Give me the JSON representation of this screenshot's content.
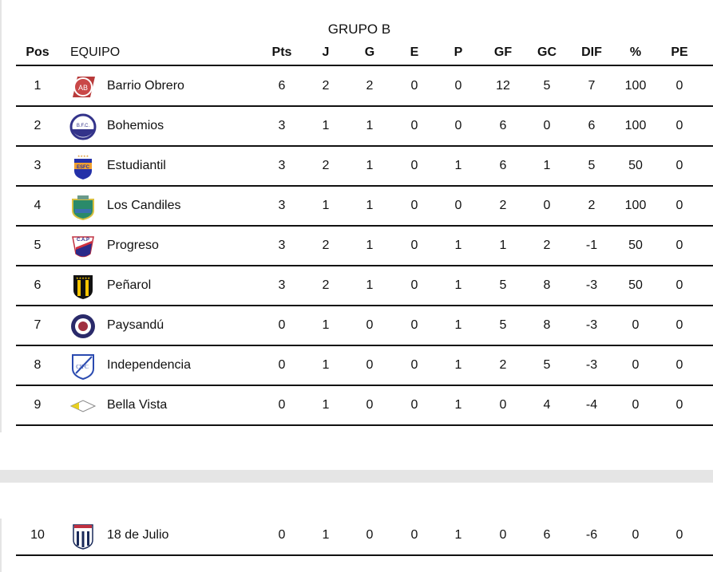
{
  "title": "GRUPO B",
  "headers": {
    "pos": "Pos",
    "team": "EQUIPO",
    "pts": "Pts",
    "j": "J",
    "g": "G",
    "e": "E",
    "p": "P",
    "gf": "GF",
    "gc": "GC",
    "dif": "DIF",
    "pct": "%",
    "pe": "PE"
  },
  "rows": [
    {
      "pos": "1",
      "team": "Barrio Obrero",
      "logo": "barrio-obrero-crest",
      "pts": "6",
      "j": "2",
      "g": "2",
      "e": "0",
      "p": "0",
      "gf": "12",
      "gc": "5",
      "dif": "7",
      "pct": "100",
      "pe": "0"
    },
    {
      "pos": "2",
      "team": "Bohemios",
      "logo": "bohemios-crest",
      "pts": "3",
      "j": "1",
      "g": "1",
      "e": "0",
      "p": "0",
      "gf": "6",
      "gc": "0",
      "dif": "6",
      "pct": "100",
      "pe": "0"
    },
    {
      "pos": "3",
      "team": "Estudiantil",
      "logo": "estudiantil-crest",
      "pts": "3",
      "j": "2",
      "g": "1",
      "e": "0",
      "p": "1",
      "gf": "6",
      "gc": "1",
      "dif": "5",
      "pct": "50",
      "pe": "0"
    },
    {
      "pos": "4",
      "team": "Los Candiles",
      "logo": "los-candiles-crest",
      "pts": "3",
      "j": "1",
      "g": "1",
      "e": "0",
      "p": "0",
      "gf": "2",
      "gc": "0",
      "dif": "2",
      "pct": "100",
      "pe": "0"
    },
    {
      "pos": "5",
      "team": "Progreso",
      "logo": "progreso-crest",
      "pts": "3",
      "j": "2",
      "g": "1",
      "e": "0",
      "p": "1",
      "gf": "1",
      "gc": "2",
      "dif": "-1",
      "pct": "50",
      "pe": "0"
    },
    {
      "pos": "6",
      "team": "Peñarol",
      "logo": "penarol-crest",
      "pts": "3",
      "j": "2",
      "g": "1",
      "e": "0",
      "p": "1",
      "gf": "5",
      "gc": "8",
      "dif": "-3",
      "pct": "50",
      "pe": "0"
    },
    {
      "pos": "7",
      "team": "Paysandú",
      "logo": "paysandu-crest",
      "pts": "0",
      "j": "1",
      "g": "0",
      "e": "0",
      "p": "1",
      "gf": "5",
      "gc": "8",
      "dif": "-3",
      "pct": "0",
      "pe": "0"
    },
    {
      "pos": "8",
      "team": "Independencia",
      "logo": "independencia-crest",
      "pts": "0",
      "j": "1",
      "g": "0",
      "e": "0",
      "p": "1",
      "gf": "2",
      "gc": "5",
      "dif": "-3",
      "pct": "0",
      "pe": "0"
    },
    {
      "pos": "9",
      "team": "Bella Vista",
      "logo": "bella-vista-crest",
      "pts": "0",
      "j": "1",
      "g": "0",
      "e": "0",
      "p": "1",
      "gf": "0",
      "gc": "4",
      "dif": "-4",
      "pct": "0",
      "pe": "0"
    },
    {
      "pos": "10",
      "team": "18 de Julio",
      "logo": "18-de-julio-crest",
      "pts": "0",
      "j": "1",
      "g": "0",
      "e": "0",
      "p": "1",
      "gf": "0",
      "gc": "6",
      "dif": "-6",
      "pct": "0",
      "pe": "0"
    }
  ]
}
